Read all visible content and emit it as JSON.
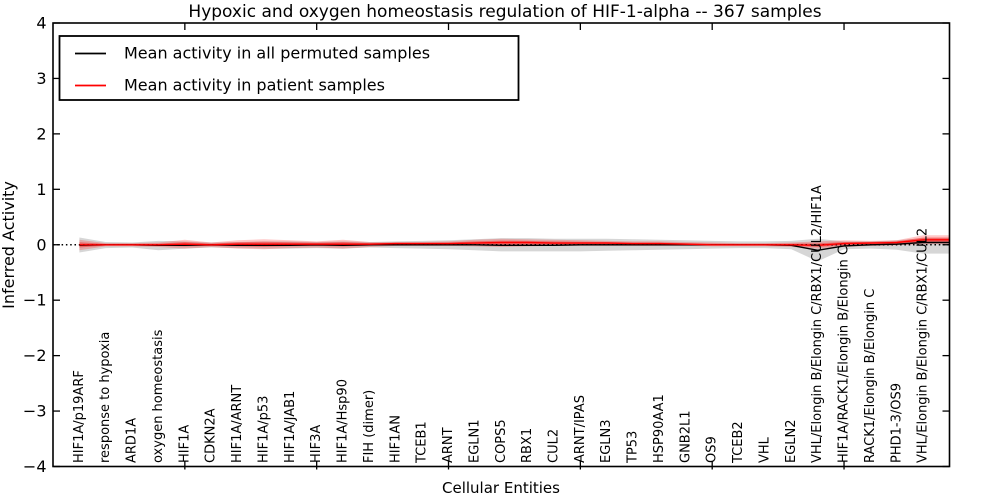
{
  "chart_data": {
    "type": "line",
    "title": "Hypoxic and oxygen homeostasis regulation of HIF-1-alpha -- 367 samples",
    "xlabel": "Cellular Entities",
    "ylabel": "Inferred Activity",
    "ylim": [
      -4,
      4
    ],
    "grid": false,
    "ytick_values": [
      4,
      3,
      2,
      1,
      0,
      -1,
      -2,
      -3,
      -4
    ],
    "ytick_labels": [
      "4",
      "3",
      "2",
      "1",
      "0",
      "−1",
      "−2",
      "−3",
      "−4"
    ],
    "xtick_category_indices": [
      4,
      9,
      14,
      19,
      24,
      29
    ],
    "categories": [
      "HIF1A/p19ARF",
      "response to hypoxia",
      "ARD1A",
      "oxygen homeostasis",
      "HIF1A",
      "CDKN2A",
      "HIF1A/ARNT",
      "HIF1A/p53",
      "HIF1A/JAB1",
      "HIF3A",
      "HIF1A/Hsp90",
      "FIH (dimer)",
      "HIF1AN",
      "TCEB1",
      "ARNT",
      "EGLN1",
      "COPS5",
      "RBX1",
      "CUL2",
      "ARNT/IPAS",
      "EGLN3",
      "TP53",
      "HSP90AA1",
      "GNB2L1",
      "OS9",
      "TCEB2",
      "VHL",
      "EGLN2",
      "VHL/Elongin B/Elongin C/RBX1/CUL2/HIF1A",
      "HIF1A/RACK1/Elongin B/Elongin C",
      "RACK1/Elongin B/Elongin C",
      "PHD1-3/OS9",
      "VHL/Elongin B/Elongin C/RBX1/CUL2"
    ],
    "zero_line": {
      "y": 0,
      "style": "dotted",
      "color": "#000000"
    },
    "series": [
      {
        "name": "Mean activity in all permuted samples",
        "color": "#000000",
        "band_color": "rgba(0,0,0,0.16)",
        "values": [
          -0.01,
          0.0,
          0.0,
          -0.01,
          -0.01,
          0.0,
          -0.01,
          -0.01,
          -0.01,
          0.0,
          -0.01,
          0.0,
          0.0,
          0.0,
          0.0,
          0.0,
          -0.01,
          -0.01,
          -0.01,
          0.0,
          0.0,
          0.0,
          0.0,
          0.0,
          0.0,
          0.0,
          0.0,
          -0.01,
          -0.1,
          -0.02,
          0.0,
          0.01,
          0.04
        ],
        "band_upper": [
          0.13,
          0.05,
          0.04,
          0.07,
          0.06,
          0.04,
          0.05,
          0.06,
          0.06,
          0.05,
          0.06,
          0.05,
          0.06,
          0.07,
          0.08,
          0.1,
          0.12,
          0.12,
          0.11,
          0.11,
          0.11,
          0.1,
          0.09,
          0.08,
          0.07,
          0.06,
          0.06,
          0.07,
          0.11,
          0.06,
          0.06,
          0.08,
          0.12
        ],
        "band_lower": [
          -0.14,
          -0.06,
          -0.05,
          -0.1,
          -0.07,
          -0.05,
          -0.06,
          -0.07,
          -0.07,
          -0.06,
          -0.07,
          -0.05,
          -0.06,
          -0.07,
          -0.08,
          -0.1,
          -0.12,
          -0.12,
          -0.12,
          -0.12,
          -0.11,
          -0.1,
          -0.09,
          -0.08,
          -0.07,
          -0.06,
          -0.06,
          -0.08,
          -0.3,
          -0.08,
          -0.07,
          -0.09,
          -0.16
        ]
      },
      {
        "name": "Mean activity in patient samples",
        "color": "#ff0000",
        "band_color": "rgba(255,0,0,0.22)",
        "band_inner_color": "rgba(255,0,0,0.38)",
        "band_inner_fraction": 0.5,
        "values": [
          0.0,
          0.0,
          0.0,
          0.0,
          0.01,
          0.0,
          0.01,
          0.01,
          0.01,
          0.01,
          0.01,
          0.01,
          0.02,
          0.02,
          0.02,
          0.03,
          0.04,
          0.04,
          0.03,
          0.03,
          0.03,
          0.02,
          0.02,
          0.01,
          0.0,
          0.0,
          0.0,
          0.0,
          -0.01,
          0.02,
          0.03,
          0.04,
          0.09
        ],
        "band_upper": [
          0.09,
          0.03,
          0.03,
          0.04,
          0.09,
          0.04,
          0.08,
          0.1,
          0.08,
          0.06,
          0.09,
          0.05,
          0.05,
          0.05,
          0.06,
          0.09,
          0.11,
          0.1,
          0.09,
          0.08,
          0.07,
          0.06,
          0.06,
          0.05,
          0.04,
          0.03,
          0.03,
          0.04,
          0.06,
          0.08,
          0.07,
          0.08,
          0.17
        ],
        "band_lower": [
          -0.1,
          -0.03,
          -0.03,
          -0.04,
          -0.07,
          -0.04,
          -0.07,
          -0.08,
          -0.06,
          -0.05,
          -0.07,
          -0.04,
          -0.02,
          -0.02,
          -0.02,
          -0.03,
          -0.04,
          -0.03,
          -0.02,
          -0.02,
          -0.02,
          -0.02,
          -0.02,
          -0.02,
          -0.03,
          -0.03,
          -0.03,
          -0.04,
          -0.07,
          -0.04,
          -0.02,
          -0.01,
          0.01
        ]
      }
    ],
    "legend": {
      "position": "upper left",
      "items": [
        {
          "label": "Mean activity in all permuted samples",
          "color": "#000000"
        },
        {
          "label": "Mean activity in patient samples",
          "color": "#ff0000"
        }
      ]
    }
  }
}
